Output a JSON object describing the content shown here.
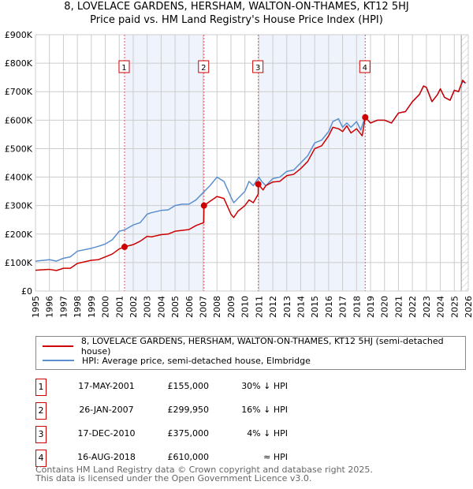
{
  "chart_data": {
    "type": "line",
    "title": "8, LOVELACE GARDENS, HERSHAM, WALTON-ON-THAMES, KT12 5HJ",
    "subtitle": "Price paid vs. HM Land Registry's House Price Index (HPI)",
    "xlim": [
      1995,
      2026
    ],
    "ylim": [
      0,
      900000
    ],
    "x_ticks": [
      "1995",
      "1996",
      "1997",
      "1998",
      "1999",
      "2000",
      "2001",
      "2002",
      "2003",
      "2004",
      "2005",
      "2006",
      "2007",
      "2008",
      "2009",
      "2010",
      "2011",
      "2012",
      "2013",
      "2014",
      "2015",
      "2016",
      "2017",
      "2018",
      "2019",
      "2020",
      "2021",
      "2022",
      "2023",
      "2024",
      "2025",
      "2026"
    ],
    "y_ticks": [
      {
        "v": 0,
        "label": "£0"
      },
      {
        "v": 100000,
        "label": "£100K"
      },
      {
        "v": 200000,
        "label": "£200K"
      },
      {
        "v": 300000,
        "label": "£300K"
      },
      {
        "v": 400000,
        "label": "£400K"
      },
      {
        "v": 500000,
        "label": "£500K"
      },
      {
        "v": 600000,
        "label": "£600K"
      },
      {
        "v": 700000,
        "label": "£700K"
      },
      {
        "v": 800000,
        "label": "£800K"
      },
      {
        "v": 900000,
        "label": "£900K"
      }
    ],
    "grid": true,
    "shaded_ranges": [
      [
        2001.38,
        2007.07
      ],
      [
        2010.96,
        2018.62
      ]
    ],
    "forecast_hatch_from": 2025.5,
    "series": [
      {
        "name": "8, LOVELACE GARDENS, HERSHAM, WALTON-ON-THAMES, KT12 5HJ (semi-detached house)",
        "color": "#cc0000",
        "points": [
          [
            1995,
            73
          ],
          [
            1996,
            76
          ],
          [
            1996.5,
            72
          ],
          [
            1997,
            80
          ],
          [
            1997.5,
            80
          ],
          [
            1998,
            97
          ],
          [
            1999,
            108
          ],
          [
            1999.5,
            110
          ],
          [
            2000,
            120
          ],
          [
            2000.5,
            130
          ],
          [
            2001,
            148
          ],
          [
            2001.38,
            155
          ],
          [
            2002,
            163
          ],
          [
            2002.5,
            175
          ],
          [
            2003,
            192
          ],
          [
            2003.3,
            190
          ],
          [
            2004,
            198
          ],
          [
            2004.5,
            200
          ],
          [
            2005,
            210
          ],
          [
            2005.5,
            213
          ],
          [
            2006,
            216
          ],
          [
            2006.5,
            230
          ],
          [
            2007.05,
            240
          ],
          [
            2007.07,
            300
          ],
          [
            2007.5,
            315
          ],
          [
            2008,
            332
          ],
          [
            2008.5,
            325
          ],
          [
            2009,
            270
          ],
          [
            2009.2,
            258
          ],
          [
            2009.5,
            280
          ],
          [
            2010,
            300
          ],
          [
            2010.3,
            320
          ],
          [
            2010.6,
            310
          ],
          [
            2010.95,
            340
          ],
          [
            2010.96,
            375
          ],
          [
            2011.3,
            355
          ],
          [
            2011.5,
            370
          ],
          [
            2012,
            383
          ],
          [
            2012.5,
            385
          ],
          [
            2013,
            405
          ],
          [
            2013.5,
            410
          ],
          [
            2014,
            430
          ],
          [
            2014.5,
            455
          ],
          [
            2015,
            500
          ],
          [
            2015.5,
            510
          ],
          [
            2016,
            545
          ],
          [
            2016.3,
            575
          ],
          [
            2016.7,
            570
          ],
          [
            2017,
            560
          ],
          [
            2017.3,
            580
          ],
          [
            2017.6,
            555
          ],
          [
            2018,
            570
          ],
          [
            2018.4,
            545
          ],
          [
            2018.62,
            610
          ],
          [
            2019,
            590
          ],
          [
            2019.5,
            600
          ],
          [
            2020,
            600
          ],
          [
            2020.5,
            590
          ],
          [
            2021,
            625
          ],
          [
            2021.5,
            630
          ],
          [
            2022,
            665
          ],
          [
            2022.5,
            690
          ],
          [
            2022.8,
            720
          ],
          [
            2023,
            715
          ],
          [
            2023.4,
            665
          ],
          [
            2023.8,
            690
          ],
          [
            2024,
            710
          ],
          [
            2024.3,
            680
          ],
          [
            2024.7,
            670
          ],
          [
            2025,
            705
          ],
          [
            2025.3,
            700
          ],
          [
            2025.6,
            740
          ],
          [
            2025.8,
            730
          ]
        ]
      },
      {
        "name": "HPI: Average price, semi-detached house, Elmbridge",
        "color": "#5b8fd0",
        "points": [
          [
            1995,
            105
          ],
          [
            1996,
            110
          ],
          [
            1996.5,
            105
          ],
          [
            1997,
            115
          ],
          [
            1997.5,
            120
          ],
          [
            1998,
            140
          ],
          [
            1999,
            150
          ],
          [
            1999.5,
            157
          ],
          [
            2000,
            165
          ],
          [
            2000.5,
            180
          ],
          [
            2001,
            210
          ],
          [
            2001.4,
            215
          ],
          [
            2002,
            232
          ],
          [
            2002.5,
            240
          ],
          [
            2003,
            270
          ],
          [
            2003.3,
            275
          ],
          [
            2004,
            283
          ],
          [
            2004.5,
            285
          ],
          [
            2005,
            300
          ],
          [
            2005.5,
            305
          ],
          [
            2006,
            305
          ],
          [
            2006.5,
            320
          ],
          [
            2007,
            345
          ],
          [
            2007.5,
            370
          ],
          [
            2008,
            400
          ],
          [
            2008.5,
            385
          ],
          [
            2009,
            330
          ],
          [
            2009.2,
            310
          ],
          [
            2009.5,
            325
          ],
          [
            2010,
            350
          ],
          [
            2010.3,
            385
          ],
          [
            2010.6,
            370
          ],
          [
            2011,
            400
          ],
          [
            2011.2,
            385
          ],
          [
            2011.5,
            370
          ],
          [
            2012,
            395
          ],
          [
            2012.5,
            400
          ],
          [
            2013,
            420
          ],
          [
            2013.5,
            425
          ],
          [
            2014,
            450
          ],
          [
            2014.5,
            475
          ],
          [
            2015,
            520
          ],
          [
            2015.5,
            530
          ],
          [
            2016,
            560
          ],
          [
            2016.3,
            595
          ],
          [
            2016.7,
            605
          ],
          [
            2017,
            575
          ],
          [
            2017.3,
            590
          ],
          [
            2017.6,
            575
          ],
          [
            2018,
            595
          ],
          [
            2018.3,
            565
          ],
          [
            2018.6,
            610
          ],
          [
            2019,
            590
          ],
          [
            2019.5,
            600
          ],
          [
            2020,
            600
          ],
          [
            2020.5,
            590
          ],
          [
            2021,
            625
          ],
          [
            2021.5,
            630
          ],
          [
            2022,
            665
          ],
          [
            2022.5,
            690
          ],
          [
            2022.8,
            720
          ],
          [
            2023,
            715
          ],
          [
            2023.4,
            665
          ],
          [
            2023.8,
            690
          ],
          [
            2024,
            710
          ],
          [
            2024.3,
            680
          ],
          [
            2024.7,
            670
          ],
          [
            2025,
            705
          ],
          [
            2025.3,
            700
          ],
          [
            2025.6,
            735
          ],
          [
            2025.8,
            730
          ]
        ]
      }
    ],
    "sales": [
      {
        "n": "1",
        "x": 2001.38,
        "price": 155000,
        "date": "17-MAY-2001",
        "price_label": "£155,000",
        "vs_hpi": "30% ↓ HPI"
      },
      {
        "n": "2",
        "x": 2007.07,
        "price": 299950,
        "date": "26-JAN-2007",
        "price_label": "£299,950",
        "vs_hpi": "16% ↓ HPI"
      },
      {
        "n": "3",
        "x": 2010.96,
        "price": 375000,
        "date": "17-DEC-2010",
        "price_label": "£375,000",
        "vs_hpi": "4% ↓ HPI"
      },
      {
        "n": "4",
        "x": 2018.62,
        "price": 610000,
        "date": "16-AUG-2018",
        "price_label": "£610,000",
        "vs_hpi": "≈ HPI"
      }
    ]
  },
  "legend": {
    "red": "8, LOVELACE GARDENS, HERSHAM, WALTON-ON-THAMES, KT12 5HJ (semi-detached house)",
    "blue": "HPI: Average price, semi-detached house, Elmbridge"
  },
  "footer": {
    "line1": "Contains HM Land Registry data © Crown copyright and database right 2025.",
    "line2": "This data is licensed under the Open Government Licence v3.0."
  }
}
